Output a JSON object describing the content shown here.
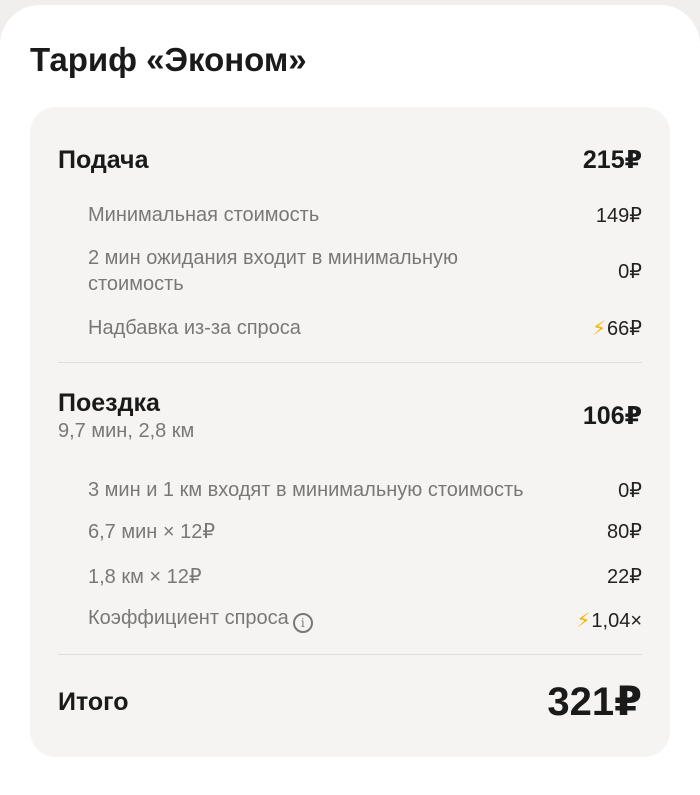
{
  "title": "Тариф «Эконом»",
  "colors": {
    "surge": "#f5b400",
    "panel": "#f5f4f2"
  },
  "pickup": {
    "label": "Подача",
    "amount": "215₽",
    "items": [
      {
        "label": "Минимальная стоимость",
        "value": "149₽"
      },
      {
        "label": "2 мин ожидания входит в минимальную стоимость",
        "value": "0₽"
      },
      {
        "label": "Надбавка из-за спроса",
        "value": "66₽",
        "icon": "lightning-icon"
      }
    ]
  },
  "ride": {
    "label": "Поездка",
    "meta": "9,7 мин, 2,8 км",
    "amount": "106₽",
    "items": [
      {
        "label": "3 мин и 1 км входят в минимальную стоимость",
        "value": "0₽"
      },
      {
        "label": "6,7 мин × 12₽",
        "value": "80₽"
      },
      {
        "label": "1,8 км × 12₽",
        "value": "22₽"
      },
      {
        "label": "Коэффициент спроса",
        "value": "1,04×",
        "icon": "lightning-icon",
        "info": "i"
      }
    ]
  },
  "total": {
    "label": "Итого",
    "amount": "321₽"
  }
}
